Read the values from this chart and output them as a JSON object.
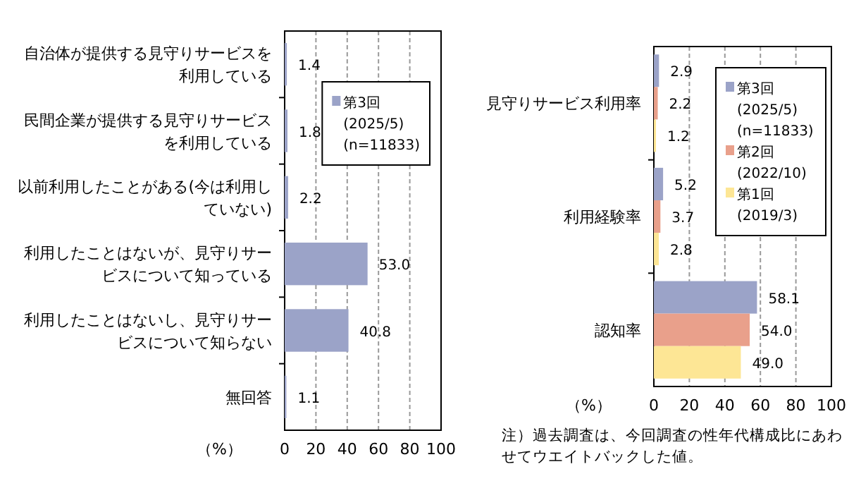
{
  "chart_data": [
    {
      "type": "bar",
      "orientation": "horizontal",
      "categories": [
        "自治体が提供する見守りサービスを利用している",
        "民間企業が提供する見守りサービスを利用している",
        "以前利用したことがある(今は利用していない)",
        "利用したことはないが、見守りサービスについて知っている",
        "利用したことはないし、見守りサービスについて知らない",
        "無回答"
      ],
      "series": [
        {
          "name": "第3回\n(2025/5)\n(n=11833)",
          "color": "#9ba3c8",
          "values": [
            1.4,
            1.8,
            2.2,
            53.0,
            40.8,
            1.1
          ],
          "value_labels": [
            "1.4",
            "1.8",
            "2.2",
            "53.0",
            "40.8",
            "1.1"
          ]
        }
      ],
      "xlabel": "（%）",
      "xlim": [
        0,
        100
      ],
      "xticks": [
        0,
        20,
        40,
        60,
        80,
        100
      ],
      "grid": "x",
      "legend": "top right"
    },
    {
      "type": "bar",
      "orientation": "horizontal",
      "categories": [
        "見守りサービス利用率",
        "利用経験率",
        "認知率"
      ],
      "series": [
        {
          "name": "第3回\n(2025/5)\n(n=11833)",
          "color": "#9ba3c8",
          "values": [
            2.9,
            5.2,
            58.1
          ],
          "value_labels": [
            "2.9",
            "5.2",
            "58.1"
          ]
        },
        {
          "name": "第2回\n(2022/10)",
          "color": "#e9a08b",
          "values": [
            2.2,
            3.7,
            54.0
          ],
          "value_labels": [
            "2.2",
            "3.7",
            "54.0"
          ]
        },
        {
          "name": "第1回\n(2019/3)",
          "color": "#fde695",
          "values": [
            1.2,
            2.8,
            49.0
          ],
          "value_labels": [
            "1.2",
            "2.8",
            "49.0"
          ]
        }
      ],
      "xlabel": "（%）",
      "xlim": [
        0,
        100
      ],
      "xticks": [
        0,
        20,
        40,
        60,
        80,
        100
      ],
      "grid": "x",
      "legend": "top right",
      "annotations": [
        "注）過去調査は、今回調査の性年代構成比にあわせてウエイトバックした値。"
      ]
    }
  ]
}
